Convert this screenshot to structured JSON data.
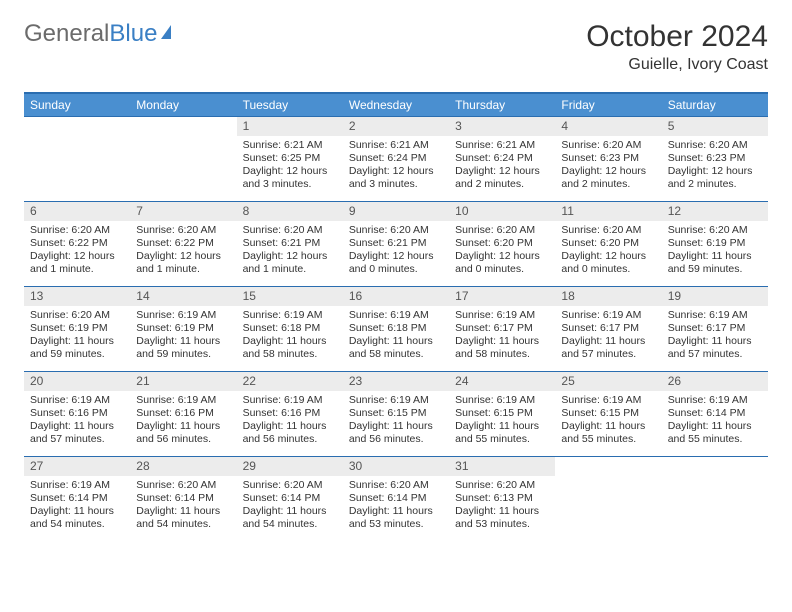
{
  "brand": {
    "part1": "General",
    "part2": "Blue"
  },
  "title": "October 2024",
  "location": "Guielle, Ivory Coast",
  "colors": {
    "header_bg": "#4a8fd0",
    "border": "#2a6db0",
    "daynum_bg": "#ececec",
    "text": "#333333",
    "brand_gray": "#6b6b6b",
    "brand_blue": "#3a7fc4"
  },
  "weekdays": [
    "Sunday",
    "Monday",
    "Tuesday",
    "Wednesday",
    "Thursday",
    "Friday",
    "Saturday"
  ],
  "weeks": [
    [
      {
        "n": "",
        "sunrise": "",
        "sunset": "",
        "daylight": ""
      },
      {
        "n": "",
        "sunrise": "",
        "sunset": "",
        "daylight": ""
      },
      {
        "n": "1",
        "sunrise": "Sunrise: 6:21 AM",
        "sunset": "Sunset: 6:25 PM",
        "daylight": "Daylight: 12 hours and 3 minutes."
      },
      {
        "n": "2",
        "sunrise": "Sunrise: 6:21 AM",
        "sunset": "Sunset: 6:24 PM",
        "daylight": "Daylight: 12 hours and 3 minutes."
      },
      {
        "n": "3",
        "sunrise": "Sunrise: 6:21 AM",
        "sunset": "Sunset: 6:24 PM",
        "daylight": "Daylight: 12 hours and 2 minutes."
      },
      {
        "n": "4",
        "sunrise": "Sunrise: 6:20 AM",
        "sunset": "Sunset: 6:23 PM",
        "daylight": "Daylight: 12 hours and 2 minutes."
      },
      {
        "n": "5",
        "sunrise": "Sunrise: 6:20 AM",
        "sunset": "Sunset: 6:23 PM",
        "daylight": "Daylight: 12 hours and 2 minutes."
      }
    ],
    [
      {
        "n": "6",
        "sunrise": "Sunrise: 6:20 AM",
        "sunset": "Sunset: 6:22 PM",
        "daylight": "Daylight: 12 hours and 1 minute."
      },
      {
        "n": "7",
        "sunrise": "Sunrise: 6:20 AM",
        "sunset": "Sunset: 6:22 PM",
        "daylight": "Daylight: 12 hours and 1 minute."
      },
      {
        "n": "8",
        "sunrise": "Sunrise: 6:20 AM",
        "sunset": "Sunset: 6:21 PM",
        "daylight": "Daylight: 12 hours and 1 minute."
      },
      {
        "n": "9",
        "sunrise": "Sunrise: 6:20 AM",
        "sunset": "Sunset: 6:21 PM",
        "daylight": "Daylight: 12 hours and 0 minutes."
      },
      {
        "n": "10",
        "sunrise": "Sunrise: 6:20 AM",
        "sunset": "Sunset: 6:20 PM",
        "daylight": "Daylight: 12 hours and 0 minutes."
      },
      {
        "n": "11",
        "sunrise": "Sunrise: 6:20 AM",
        "sunset": "Sunset: 6:20 PM",
        "daylight": "Daylight: 12 hours and 0 minutes."
      },
      {
        "n": "12",
        "sunrise": "Sunrise: 6:20 AM",
        "sunset": "Sunset: 6:19 PM",
        "daylight": "Daylight: 11 hours and 59 minutes."
      }
    ],
    [
      {
        "n": "13",
        "sunrise": "Sunrise: 6:20 AM",
        "sunset": "Sunset: 6:19 PM",
        "daylight": "Daylight: 11 hours and 59 minutes."
      },
      {
        "n": "14",
        "sunrise": "Sunrise: 6:19 AM",
        "sunset": "Sunset: 6:19 PM",
        "daylight": "Daylight: 11 hours and 59 minutes."
      },
      {
        "n": "15",
        "sunrise": "Sunrise: 6:19 AM",
        "sunset": "Sunset: 6:18 PM",
        "daylight": "Daylight: 11 hours and 58 minutes."
      },
      {
        "n": "16",
        "sunrise": "Sunrise: 6:19 AM",
        "sunset": "Sunset: 6:18 PM",
        "daylight": "Daylight: 11 hours and 58 minutes."
      },
      {
        "n": "17",
        "sunrise": "Sunrise: 6:19 AM",
        "sunset": "Sunset: 6:17 PM",
        "daylight": "Daylight: 11 hours and 58 minutes."
      },
      {
        "n": "18",
        "sunrise": "Sunrise: 6:19 AM",
        "sunset": "Sunset: 6:17 PM",
        "daylight": "Daylight: 11 hours and 57 minutes."
      },
      {
        "n": "19",
        "sunrise": "Sunrise: 6:19 AM",
        "sunset": "Sunset: 6:17 PM",
        "daylight": "Daylight: 11 hours and 57 minutes."
      }
    ],
    [
      {
        "n": "20",
        "sunrise": "Sunrise: 6:19 AM",
        "sunset": "Sunset: 6:16 PM",
        "daylight": "Daylight: 11 hours and 57 minutes."
      },
      {
        "n": "21",
        "sunrise": "Sunrise: 6:19 AM",
        "sunset": "Sunset: 6:16 PM",
        "daylight": "Daylight: 11 hours and 56 minutes."
      },
      {
        "n": "22",
        "sunrise": "Sunrise: 6:19 AM",
        "sunset": "Sunset: 6:16 PM",
        "daylight": "Daylight: 11 hours and 56 minutes."
      },
      {
        "n": "23",
        "sunrise": "Sunrise: 6:19 AM",
        "sunset": "Sunset: 6:15 PM",
        "daylight": "Daylight: 11 hours and 56 minutes."
      },
      {
        "n": "24",
        "sunrise": "Sunrise: 6:19 AM",
        "sunset": "Sunset: 6:15 PM",
        "daylight": "Daylight: 11 hours and 55 minutes."
      },
      {
        "n": "25",
        "sunrise": "Sunrise: 6:19 AM",
        "sunset": "Sunset: 6:15 PM",
        "daylight": "Daylight: 11 hours and 55 minutes."
      },
      {
        "n": "26",
        "sunrise": "Sunrise: 6:19 AM",
        "sunset": "Sunset: 6:14 PM",
        "daylight": "Daylight: 11 hours and 55 minutes."
      }
    ],
    [
      {
        "n": "27",
        "sunrise": "Sunrise: 6:19 AM",
        "sunset": "Sunset: 6:14 PM",
        "daylight": "Daylight: 11 hours and 54 minutes."
      },
      {
        "n": "28",
        "sunrise": "Sunrise: 6:20 AM",
        "sunset": "Sunset: 6:14 PM",
        "daylight": "Daylight: 11 hours and 54 minutes."
      },
      {
        "n": "29",
        "sunrise": "Sunrise: 6:20 AM",
        "sunset": "Sunset: 6:14 PM",
        "daylight": "Daylight: 11 hours and 54 minutes."
      },
      {
        "n": "30",
        "sunrise": "Sunrise: 6:20 AM",
        "sunset": "Sunset: 6:14 PM",
        "daylight": "Daylight: 11 hours and 53 minutes."
      },
      {
        "n": "31",
        "sunrise": "Sunrise: 6:20 AM",
        "sunset": "Sunset: 6:13 PM",
        "daylight": "Daylight: 11 hours and 53 minutes."
      },
      {
        "n": "",
        "sunrise": "",
        "sunset": "",
        "daylight": ""
      },
      {
        "n": "",
        "sunrise": "",
        "sunset": "",
        "daylight": ""
      }
    ]
  ]
}
